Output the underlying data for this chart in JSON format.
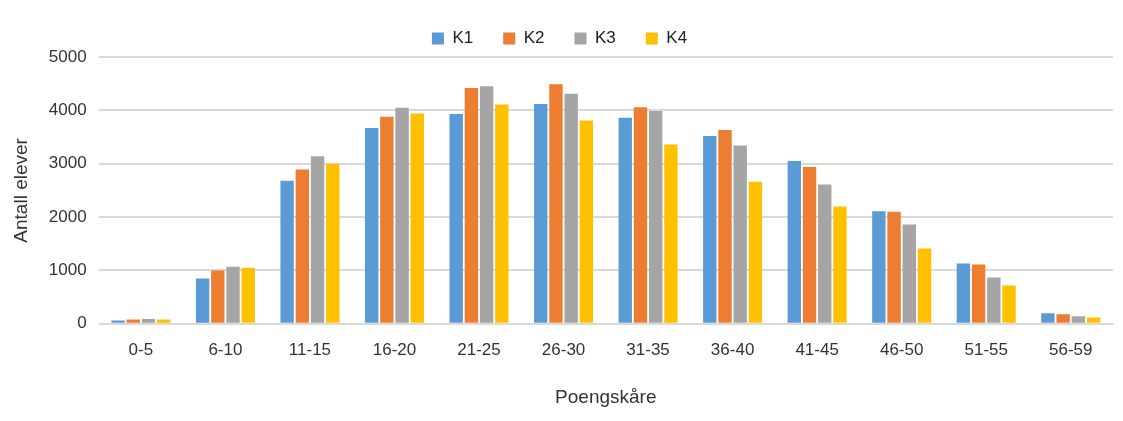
{
  "chart_data": {
    "type": "bar",
    "xlabel": "Poengskåre",
    "ylabel": "Antall elever",
    "categories": [
      "0-5",
      "6-10",
      "11-15",
      "16-20",
      "21-25",
      "26-30",
      "31-35",
      "36-40",
      "41-45",
      "46-50",
      "51-55",
      "56-59"
    ],
    "series": [
      {
        "name": "K1",
        "color": "#5b9bd5",
        "values": [
          60,
          850,
          2680,
          3670,
          3930,
          4120,
          3860,
          3520,
          3050,
          2110,
          1130,
          200
        ]
      },
      {
        "name": "K2",
        "color": "#ed7d31",
        "values": [
          80,
          1000,
          2890,
          3880,
          4420,
          4490,
          4060,
          3630,
          2940,
          2100,
          1110,
          180
        ]
      },
      {
        "name": "K3",
        "color": "#a5a5a5",
        "values": [
          90,
          1070,
          3140,
          4050,
          4450,
          4310,
          3990,
          3340,
          2610,
          1860,
          870,
          140
        ]
      },
      {
        "name": "K4",
        "color": "#ffc000",
        "values": [
          80,
          1050,
          3000,
          3940,
          4110,
          3810,
          3360,
          2660,
          2200,
          1410,
          720,
          120
        ]
      }
    ],
    "ylim": [
      0,
      5000
    ],
    "yticks": [
      0,
      1000,
      2000,
      3000,
      4000,
      5000
    ],
    "grid": "y",
    "legend": "top"
  }
}
